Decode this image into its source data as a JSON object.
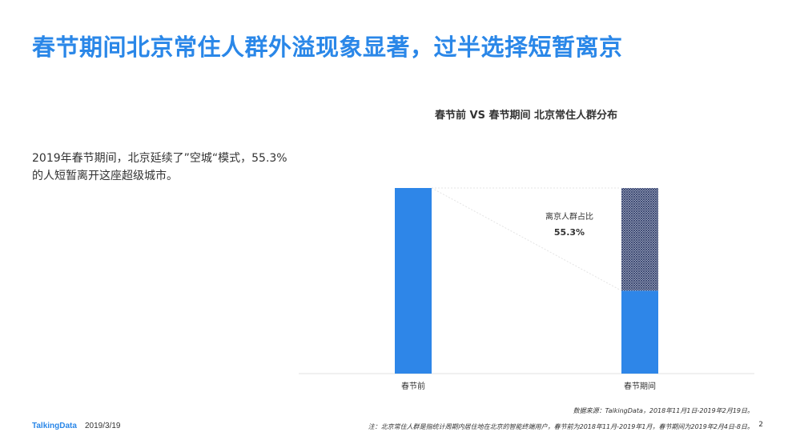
{
  "page": {
    "title": "春节期间北京常住人群外溢现象显著，过半选择短暂离京",
    "summary": "2019年春节期间，北京延续了”空城“模式，55.3%的人短暂离开这座超级城市。",
    "brand": "TalkingData",
    "date": "2019/3/19",
    "source": "数据来源：TalkingData，2018年11月1日-2019年2月19日。",
    "note": "注：北京常住人群是指统计周期内居住地在北京的智能终端用户，春节前为2018年11月-2019年1月，春节期间为2019年2月4日-8日。",
    "page_number": "2"
  },
  "chart_data": {
    "type": "bar",
    "stacked": true,
    "title": "春节前 VS 春节期间  北京常住人群分布",
    "categories": [
      "春节前",
      "春节期间"
    ],
    "series": [
      {
        "name": "",
        "values": [
          100,
          44.7
        ],
        "color": "#2e86e8"
      },
      {
        "name": "离京人群占比",
        "values": [
          0,
          55.3
        ],
        "color": "#2d3a66",
        "pattern": "crosshatch"
      }
    ],
    "annotation": {
      "label": "离京人群占比",
      "value": "55.3%"
    },
    "ylim": [
      0,
      100
    ],
    "grid": false,
    "legend": "none"
  }
}
